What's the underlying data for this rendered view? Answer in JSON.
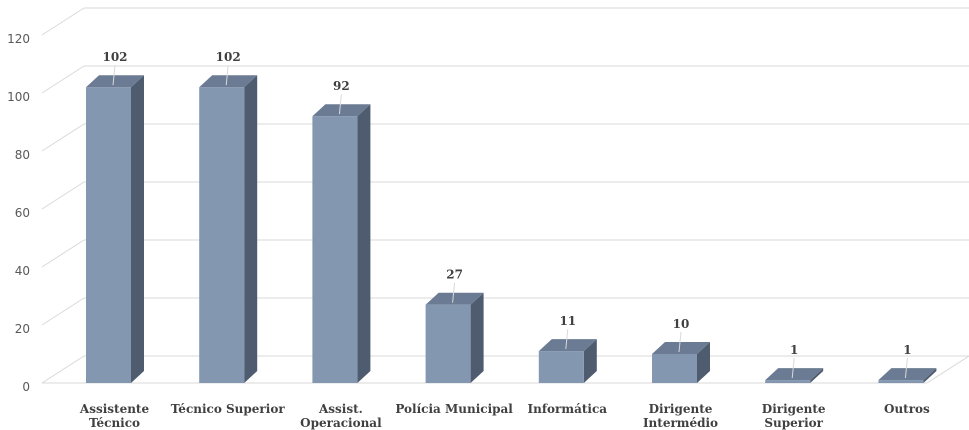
{
  "chart_data": {
    "type": "bar",
    "style": "3d-column",
    "title": "",
    "xlabel": "",
    "ylabel": "",
    "ylim": [
      0,
      120
    ],
    "y_ticks": [
      0,
      20,
      40,
      60,
      80,
      100,
      120
    ],
    "grid": true,
    "legend": "none",
    "categories": [
      [
        "Assistente",
        "Técnico"
      ],
      [
        "Técnico Superior"
      ],
      [
        "Assist.",
        "Operacional"
      ],
      [
        "Polícia Municipal"
      ],
      [
        "Informática"
      ],
      [
        "Dirigente",
        "Intermédio"
      ],
      [
        "Dirigente",
        "Superior"
      ],
      [
        "Outros"
      ]
    ],
    "values": [
      102,
      102,
      92,
      27,
      11,
      10,
      1,
      1
    ],
    "colors": {
      "bar_front": "#8497b0",
      "bar_top": "#6b7b93",
      "bar_side": "#4f5b6f",
      "grid": "#d9d9d9"
    }
  }
}
